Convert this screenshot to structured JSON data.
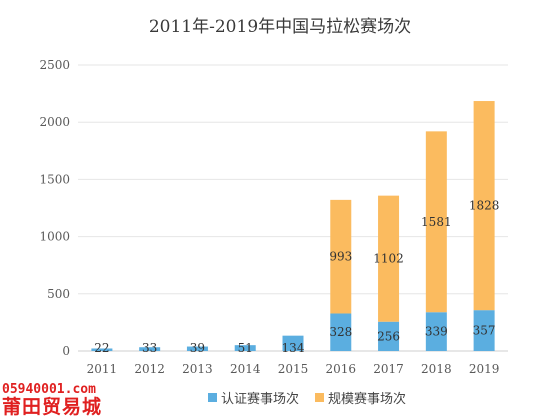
{
  "chart_data": {
    "type": "bar",
    "stacked": true,
    "title": "2011年-2019年中国马拉松赛场次",
    "categories": [
      "2011",
      "2012",
      "2013",
      "2014",
      "2015",
      "2016",
      "2017",
      "2018",
      "2019"
    ],
    "series": [
      {
        "name": "认证赛事场次",
        "color": "#5baee0",
        "values": [
          22,
          33,
          39,
          51,
          134,
          328,
          256,
          339,
          357
        ]
      },
      {
        "name": "规模赛事场次",
        "color": "#fbbb5f",
        "values": [
          0,
          0,
          0,
          0,
          0,
          993,
          1102,
          1581,
          1828
        ]
      }
    ],
    "data_labels": [
      [
        "22",
        "33",
        "39",
        "51",
        "134",
        "328",
        "256",
        "339",
        "357"
      ],
      [
        "",
        "",
        "",
        "",
        "",
        "993",
        "1102",
        "1581",
        "1828"
      ]
    ],
    "ylim": [
      0,
      2500
    ],
    "yticks": [
      0,
      500,
      1000,
      1500,
      2000,
      2500
    ],
    "grid": true,
    "legend": "bottom"
  },
  "watermark": {
    "url": "05940001.com",
    "name": "莆田贸易城"
  }
}
